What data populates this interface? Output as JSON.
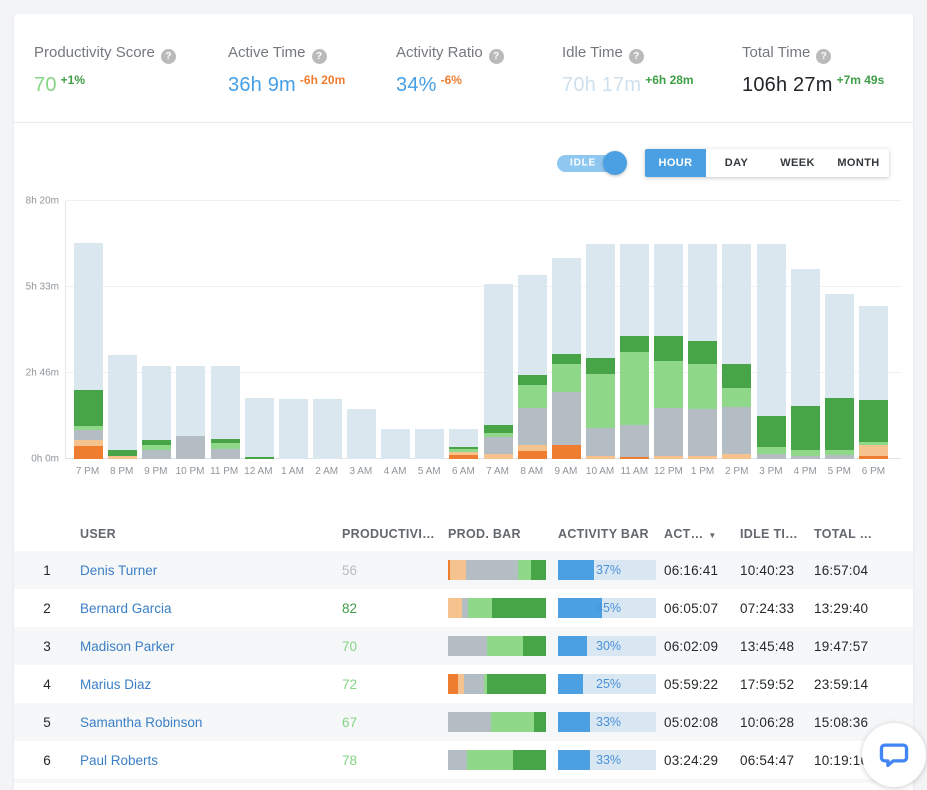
{
  "stats": [
    {
      "label": "Productivity Score",
      "value": "70",
      "delta": "+1%",
      "value_color": "#85d585",
      "delta_color": "#3f9f46"
    },
    {
      "label": "Active Time",
      "value": "36h 9m",
      "delta": "-6h 20m",
      "value_color": "#459fe6",
      "delta_color": "#ee7d30"
    },
    {
      "label": "Activity Ratio",
      "value": "34%",
      "delta": "-6%",
      "value_color": "#459fe6",
      "delta_color": "#ee7d30"
    },
    {
      "label": "Idle Time",
      "value": "70h 17m",
      "delta": "+6h 28m",
      "value_color": "#cfe0ec",
      "delta_color": "#3f9f46"
    },
    {
      "label": "Total Time",
      "value": "106h 27m",
      "delta": "+7m 49s",
      "value_color": "#212529",
      "delta_color": "#3f9f46"
    }
  ],
  "controls": {
    "idle_toggle_label": "IDLE",
    "idle_toggle_on": true,
    "tabs": [
      "HOUR",
      "DAY",
      "WEEK",
      "MONTH"
    ],
    "active_tab": "HOUR"
  },
  "chart_data": {
    "type": "bar",
    "stacked": true,
    "unit": "minutes",
    "ylim": [
      0,
      500
    ],
    "yticks": [
      "0h 0m",
      "2h 46m",
      "5h 33m",
      "8h 20m"
    ],
    "grid": "horizontal",
    "legend": "none",
    "categories": [
      "7 PM",
      "8 PM",
      "9 PM",
      "10 PM",
      "11 PM",
      "12 AM",
      "1 AM",
      "2 AM",
      "3 AM",
      "4 AM",
      "5 AM",
      "6 AM",
      "7 AM",
      "8 AM",
      "9 AM",
      "10 AM",
      "11 AM",
      "12 PM",
      "1 PM",
      "2 PM",
      "3 PM",
      "4 PM",
      "5 PM",
      "6 PM"
    ],
    "series": [
      {
        "name": "unproductive",
        "color": "#ee7d30",
        "values": [
          26,
          0,
          0,
          0,
          0,
          0,
          0,
          0,
          0,
          0,
          0,
          8,
          0,
          16,
          27,
          0,
          4,
          0,
          0,
          0,
          0,
          0,
          0,
          6
        ]
      },
      {
        "name": "unproductive-passive",
        "color": "#f6c28d",
        "values": [
          10,
          6,
          0,
          0,
          0,
          0,
          0,
          0,
          0,
          0,
          0,
          5,
          10,
          11,
          0,
          5,
          0,
          6,
          6,
          10,
          0,
          0,
          0,
          22
        ]
      },
      {
        "name": "neutral",
        "color": "#b4bdc3",
        "values": [
          20,
          0,
          17,
          44,
          19,
          0,
          0,
          0,
          0,
          0,
          0,
          0,
          32,
          71,
          103,
          56,
          61,
          93,
          91,
          90,
          10,
          6,
          8,
          0
        ]
      },
      {
        "name": "productive-passive",
        "color": "#90d889",
        "values": [
          8,
          0,
          11,
          0,
          12,
          0,
          0,
          0,
          0,
          0,
          0,
          6,
          8,
          45,
          55,
          103,
          143,
          90,
          87,
          37,
          13,
          12,
          10,
          5
        ]
      },
      {
        "name": "productive",
        "color": "#47a447",
        "values": [
          70,
          12,
          8,
          0,
          8,
          3,
          0,
          0,
          0,
          0,
          0,
          4,
          15,
          19,
          18,
          32,
          30,
          50,
          45,
          48,
          60,
          85,
          100,
          82
        ]
      },
      {
        "name": "idle",
        "color": "#dbe7ee",
        "values": [
          284,
          183,
          144,
          136,
          141,
          115,
          116,
          116,
          96,
          58,
          58,
          35,
          274,
          195,
          187,
          221,
          179,
          178,
          188,
          232,
          334,
          265,
          202,
          182
        ]
      }
    ]
  },
  "table": {
    "headers": [
      "",
      "USER",
      "PRODUCTIVI…",
      "PROD. BAR",
      "ACTIVITY BAR",
      "ACT…",
      "IDLE TI…",
      "TOTAL …"
    ],
    "sorted_column": "ACT…",
    "rows": [
      {
        "rank": "1",
        "user": "Denis Turner",
        "productivity": "56",
        "prod_color": "#b6bdc2",
        "prod_bar": [
          {
            "color": "#ee7d30",
            "pct": 2
          },
          {
            "color": "#f6c28d",
            "pct": 16
          },
          {
            "color": "#b4bdc3",
            "pct": 53
          },
          {
            "color": "#90d889",
            "pct": 14
          },
          {
            "color": "#47a447",
            "pct": 15
          }
        ],
        "activity_pct": 37,
        "activity_label": "37%",
        "active": "06:16:41",
        "idle": "10:40:23",
        "total": "16:57:04"
      },
      {
        "rank": "2",
        "user": "Bernard Garcia",
        "productivity": "82",
        "prod_color": "#3f9f46",
        "prod_bar": [
          {
            "color": "#f6c28d",
            "pct": 14
          },
          {
            "color": "#b4bdc3",
            "pct": 6
          },
          {
            "color": "#90d889",
            "pct": 25
          },
          {
            "color": "#47a447",
            "pct": 55
          }
        ],
        "activity_pct": 45,
        "activity_label": "45%",
        "active": "06:05:07",
        "idle": "07:24:33",
        "total": "13:29:40"
      },
      {
        "rank": "3",
        "user": "Madison Parker",
        "productivity": "70",
        "prod_color": "#84d584",
        "prod_bar": [
          {
            "color": "#b4bdc3",
            "pct": 40
          },
          {
            "color": "#90d889",
            "pct": 37
          },
          {
            "color": "#47a447",
            "pct": 23
          }
        ],
        "activity_pct": 30,
        "activity_label": "30%",
        "active": "06:02:09",
        "idle": "13:45:48",
        "total": "19:47:57"
      },
      {
        "rank": "4",
        "user": "Marius Diaz",
        "productivity": "72",
        "prod_color": "#84d584",
        "prod_bar": [
          {
            "color": "#ee7d30",
            "pct": 10
          },
          {
            "color": "#f6c28d",
            "pct": 6
          },
          {
            "color": "#b4bdc3",
            "pct": 21
          },
          {
            "color": "#90d889",
            "pct": 3
          },
          {
            "color": "#47a447",
            "pct": 60
          }
        ],
        "activity_pct": 25,
        "activity_label": "25%",
        "active": "05:59:22",
        "idle": "17:59:52",
        "total": "23:59:14"
      },
      {
        "rank": "5",
        "user": "Samantha Robinson",
        "productivity": "67",
        "prod_color": "#84d584",
        "prod_bar": [
          {
            "color": "#b4bdc3",
            "pct": 44
          },
          {
            "color": "#90d889",
            "pct": 44
          },
          {
            "color": "#47a447",
            "pct": 12
          }
        ],
        "activity_pct": 33,
        "activity_label": "33%",
        "active": "05:02:08",
        "idle": "10:06:28",
        "total": "15:08:36"
      },
      {
        "rank": "6",
        "user": "Paul Roberts",
        "productivity": "78",
        "prod_color": "#84d584",
        "prod_bar": [
          {
            "color": "#b4bdc3",
            "pct": 19
          },
          {
            "color": "#90d889",
            "pct": 47
          },
          {
            "color": "#47a447",
            "pct": 34
          }
        ],
        "activity_pct": 33,
        "activity_label": "33%",
        "active": "03:24:29",
        "idle": "06:54:47",
        "total": "10:19:16"
      }
    ]
  },
  "colors": {
    "accent_blue": "#4aa0e2",
    "toggle_track": "#8ec7ef",
    "link_blue": "#3b7fc6",
    "chat_icon_blue": "#4285f4",
    "page_background": "#f3f4f6"
  }
}
